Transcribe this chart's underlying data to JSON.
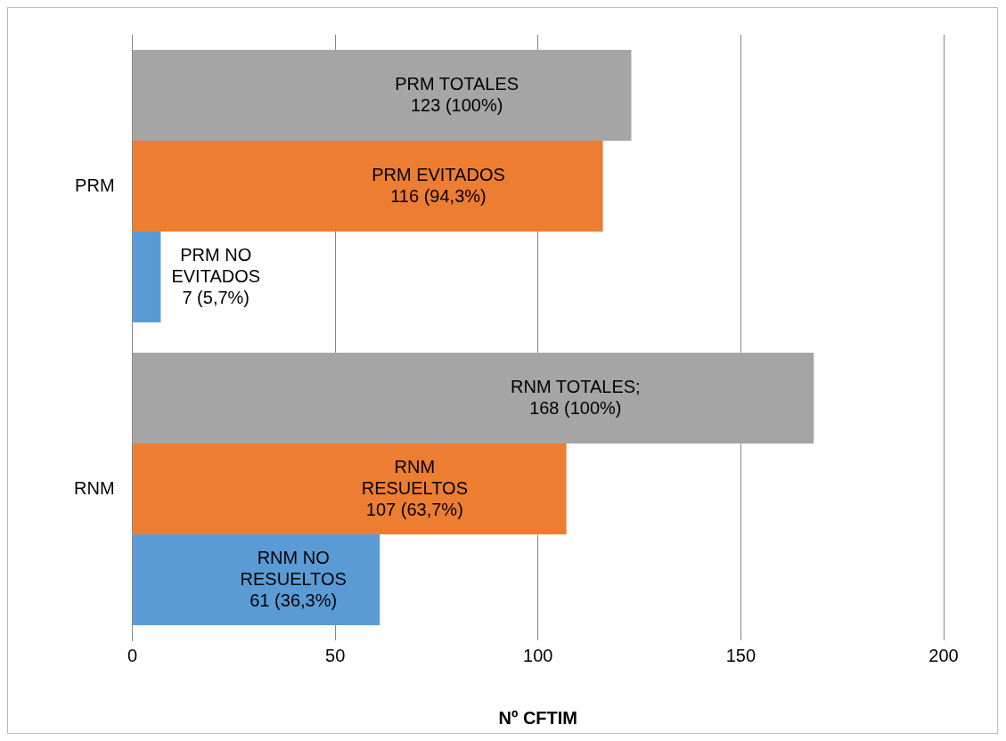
{
  "chart_data": {
    "type": "bar",
    "orientation": "horizontal",
    "xlabel": "Nº CFTIM",
    "categories": [
      "PRM",
      "RNM"
    ],
    "series": [
      {
        "color": "#a5a5a5",
        "values": [
          123,
          168
        ],
        "value_labels": [
          "PRM TOTALES\n123 (100%)",
          "RNM TOTALES;\n168 (100%)"
        ]
      },
      {
        "color": "#ed7d31",
        "values": [
          116,
          107
        ],
        "value_labels": [
          "PRM EVITADOS\n116 (94,3%)",
          "RNM\nRESUELTOS\n107 (63,7%)"
        ]
      },
      {
        "color": "#5b9bd5",
        "values": [
          7,
          61
        ],
        "value_labels": [
          "PRM NO\nEVITADOS\n7 (5,7%)",
          "RNM NO\nRESUELTOS\n61 (36,3%)"
        ]
      }
    ],
    "xlim": [
      0,
      200
    ],
    "xticks": [
      0,
      50,
      100,
      150,
      200
    ],
    "grid": "x",
    "legend": false
  }
}
